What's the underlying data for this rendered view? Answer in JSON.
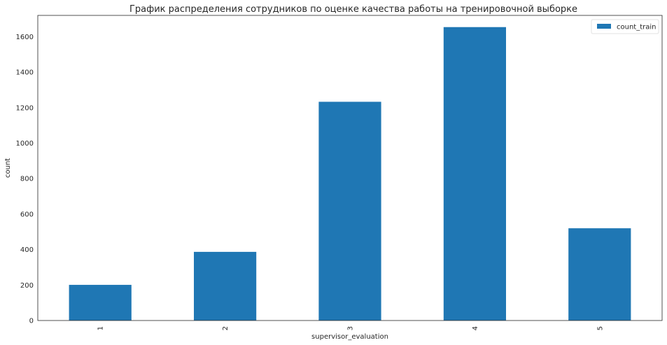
{
  "chart_data": {
    "type": "bar",
    "title": "График распределения сотрудников по оценке качества работы на тренировочной выборке",
    "xlabel": "supervisor_evaluation",
    "ylabel": "count",
    "categories": [
      "1",
      "2",
      "3",
      "4",
      "5"
    ],
    "series": [
      {
        "name": "count_train",
        "values": [
          201,
          387,
          1233,
          1654,
          520
        ],
        "color": "#1f77b4"
      }
    ],
    "ylim": [
      0,
      1720
    ],
    "yticks": [
      0,
      200,
      400,
      600,
      800,
      1000,
      1200,
      1400,
      1600
    ],
    "grid": false,
    "legend_position": "top-right"
  }
}
